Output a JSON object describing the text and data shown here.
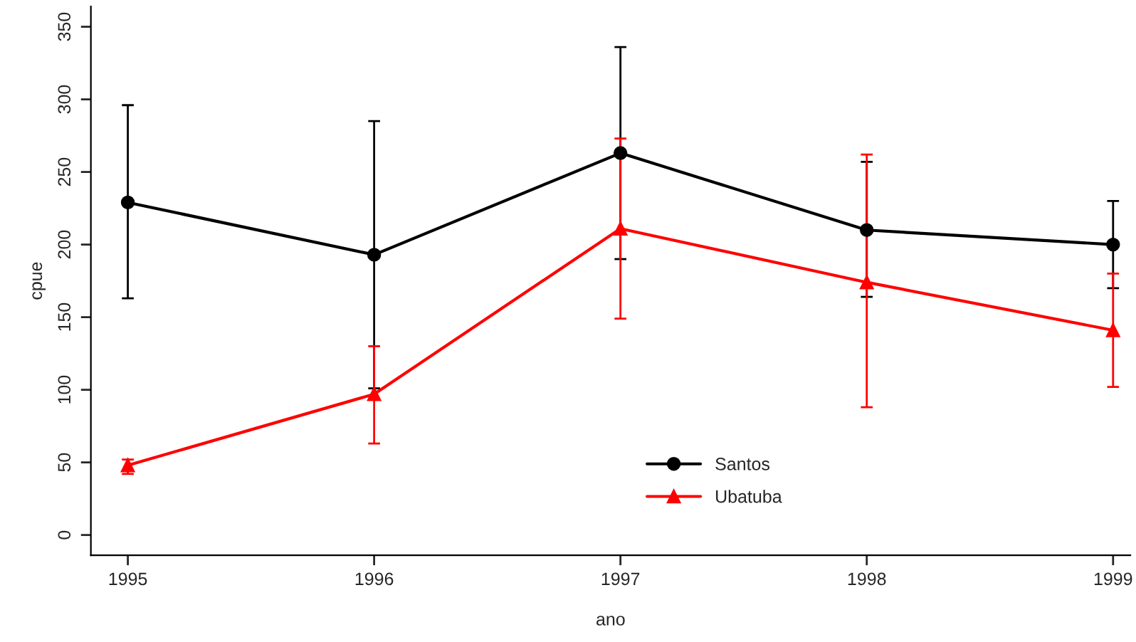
{
  "chart_data": {
    "type": "line",
    "xlabel": "ano",
    "ylabel": "cpue",
    "x": [
      1995,
      1996,
      1997,
      1998,
      1999
    ],
    "series": [
      {
        "name": "Santos",
        "color": "#000000",
        "marker": "circle",
        "values": [
          229,
          193,
          263,
          210,
          200
        ],
        "errors": [
          [
            163,
            296
          ],
          [
            101,
            285
          ],
          [
            190,
            336
          ],
          [
            164,
            257
          ],
          [
            170,
            230
          ]
        ]
      },
      {
        "name": "Ubatuba",
        "color": "#ff0000",
        "marker": "triangle",
        "values": [
          48,
          97,
          211,
          174,
          141
        ],
        "errors": [
          [
            42,
            52
          ],
          [
            63,
            130
          ],
          [
            149,
            273
          ],
          [
            88,
            262
          ],
          [
            102,
            180
          ]
        ]
      }
    ],
    "xlim": [
      1994.85,
      1999.07
    ],
    "ylim": [
      -14,
      364
    ],
    "xticks": [
      1995,
      1996,
      1997,
      1998,
      1999
    ],
    "yticks": [
      0,
      50,
      100,
      150,
      200,
      250,
      300,
      350
    ],
    "grid": false,
    "legend": "bottom",
    "line_style": "solid"
  }
}
